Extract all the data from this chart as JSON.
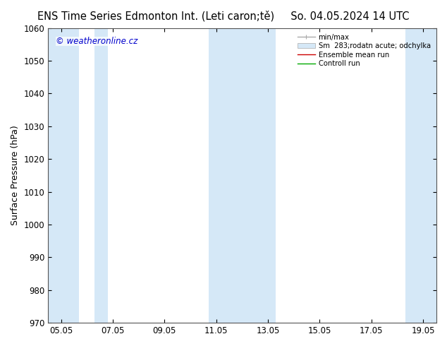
{
  "title_left": "ENS Time Series Edmonton Int. (Leti caron;tě)",
  "title_right": "So. 04.05.2024 14 UTC",
  "ylabel": "Surface Pressure (hPa)",
  "ylim": [
    970,
    1060
  ],
  "yticks": [
    970,
    980,
    990,
    1000,
    1010,
    1020,
    1030,
    1040,
    1050,
    1060
  ],
  "xtick_labels": [
    "05.05",
    "07.05",
    "09.05",
    "11.05",
    "13.05",
    "15.05",
    "17.05",
    "19.05"
  ],
  "xtick_positions": [
    0,
    2,
    4,
    6,
    8,
    10,
    12,
    14
  ],
  "x_min": -0.5,
  "x_max": 14.5,
  "shaded_bands": [
    {
      "x_start": -0.5,
      "x_end": 0.7
    },
    {
      "x_start": 1.3,
      "x_end": 1.8
    },
    {
      "x_start": 5.7,
      "x_end": 8.3
    },
    {
      "x_start": 13.3,
      "x_end": 14.5
    }
  ],
  "band_color": "#d5e8f7",
  "background_color": "#ffffff",
  "plot_bg_color": "#ffffff",
  "watermark": "© weatheronline.cz",
  "watermark_color": "#0000cc",
  "legend_entries": [
    "min/max",
    "Sm  283;rodatn acute; odchylka",
    "Ensemble mean run",
    "Controll run"
  ],
  "legend_line_colors": [
    "#aaaaaa",
    "#c8dce8",
    "#ff0000",
    "#00aa00"
  ],
  "title_fontsize": 10.5,
  "axis_label_fontsize": 9,
  "tick_fontsize": 8.5,
  "spine_color": "#555555"
}
